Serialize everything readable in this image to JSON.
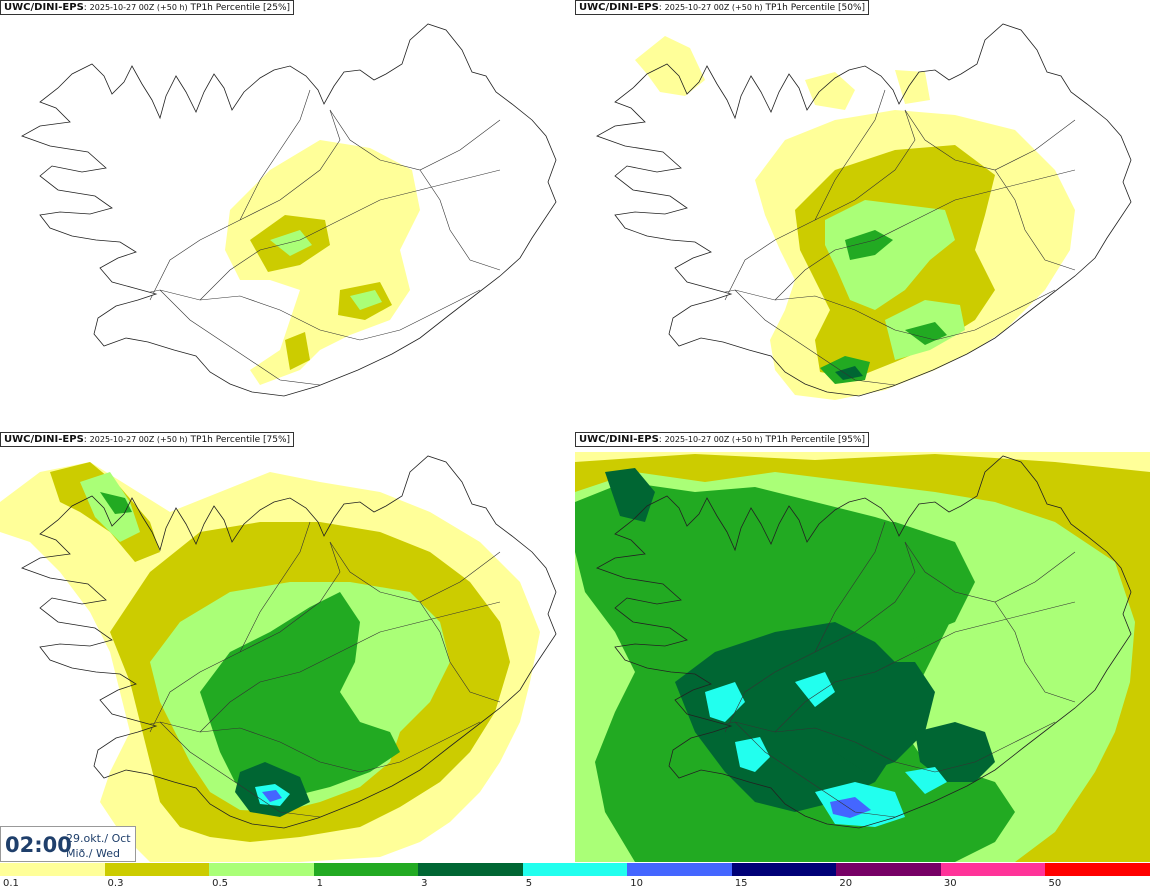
{
  "panels": [
    {
      "model": "UWC/DINI-EPS",
      "run": "2025-10-27 00Z (+50 h)",
      "param": "TP1h Percentile [25%]"
    },
    {
      "model": "UWC/DINI-EPS",
      "run": "2025-10-27 00Z (+50 h)",
      "param": "TP1h Percentile [50%]"
    },
    {
      "model": "UWC/DINI-EPS",
      "run": "2025-10-27 00Z (+50 h)",
      "param": "TP1h Percentile [75%]"
    },
    {
      "model": "UWC/DINI-EPS",
      "run": "2025-10-27 00Z (+50 h)",
      "param": "TP1h Percentile [95%]"
    }
  ],
  "valid_time": {
    "time": "02:00",
    "date_line1": "29.okt./ Oct",
    "date_line2": "Mið./ Wed"
  },
  "legend": {
    "labels": [
      "0.1",
      "0.3",
      "0.5",
      "1",
      "3",
      "5",
      "10",
      "15",
      "20",
      "30",
      "50"
    ],
    "colors": [
      "#ffff99",
      "#cccc00",
      "#aaff77",
      "#22aa22",
      "#006633",
      "#22ffee",
      "#4466ff",
      "#000077",
      "#770066",
      "#ff3399",
      "#ff0000"
    ]
  }
}
